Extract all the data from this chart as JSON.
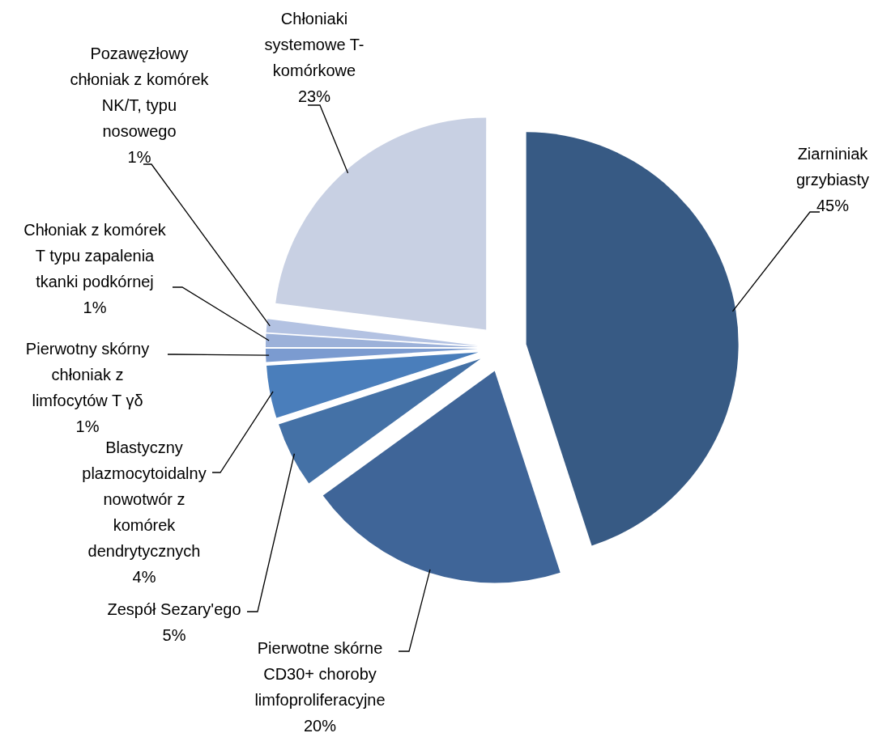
{
  "chart_data": {
    "type": "pie",
    "categories": [
      "Ziarniniak grzybiasty",
      "Pierwotne skórne CD30+ choroby limfoproliferacyjne",
      "Zespół Sezary'ego",
      "Blastyczny plazmocytoidalny nowotwór z komórek dendrytycznych",
      "Pierwotny skórny chłoniak z limfocytów T γδ",
      "Chłoniak z komórek T typu zapalenia tkanki podkórnej",
      "Pozawęzłowy chłoniak z komórek NK/T, typu nosowego",
      "Chłoniaki systemowe T-komórkowe"
    ],
    "values": [
      45,
      20,
      5,
      4,
      1,
      1,
      1,
      23
    ],
    "value_labels": [
      "45%",
      "20%",
      "5%",
      "4%",
      "1%",
      "1%",
      "1%",
      "23%"
    ],
    "colors": [
      "#375a84",
      "#3f6598",
      "#4471a6",
      "#4a7ebb",
      "#7b9bd0",
      "#9cb1d9",
      "#b3c2e2",
      "#c8d0e3"
    ]
  }
}
